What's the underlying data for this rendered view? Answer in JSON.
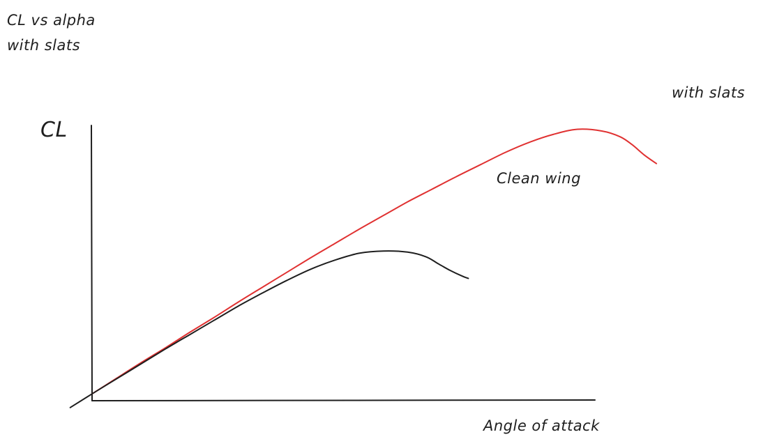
{
  "chart_data": {
    "type": "line",
    "title_lines": [
      "CL vs alpha",
      "with slats"
    ],
    "xlabel": "Angle of attack",
    "ylabel": "CL",
    "grid": false,
    "colors": {
      "axis": "#1e1e1e",
      "clean": "#1e1e1e",
      "slats": "#e03131"
    },
    "series": [
      {
        "name": "Clean wing",
        "x": [
          -0.18,
          0.0,
          0.2,
          0.4,
          0.6,
          0.8,
          1.0,
          1.2,
          1.4,
          1.6,
          1.8,
          2.0,
          2.2,
          2.4,
          2.6,
          2.75,
          2.85,
          2.95,
          3.05,
          3.1
        ],
        "y": [
          -0.12,
          0.12,
          0.38,
          0.64,
          0.9,
          1.15,
          1.4,
          1.65,
          1.88,
          2.1,
          2.3,
          2.46,
          2.58,
          2.62,
          2.6,
          2.52,
          2.4,
          2.28,
          2.18,
          2.14
        ]
      },
      {
        "name": "with slats",
        "x": [
          0.0,
          0.2,
          0.4,
          0.6,
          0.8,
          1.0,
          1.2,
          1.4,
          1.6,
          1.8,
          2.0,
          2.2,
          2.4,
          2.6,
          2.8,
          3.0,
          3.2,
          3.4,
          3.6,
          3.8,
          4.0,
          4.2,
          4.35,
          4.45,
          4.55,
          4.65
        ],
        "y": [
          0.12,
          0.39,
          0.66,
          0.92,
          1.19,
          1.45,
          1.72,
          1.98,
          2.24,
          2.5,
          2.75,
          3.0,
          3.24,
          3.48,
          3.7,
          3.92,
          4.13,
          4.34,
          4.52,
          4.66,
          4.75,
          4.72,
          4.62,
          4.48,
          4.3,
          4.15
        ]
      }
    ],
    "series_label_1": "Clean wing",
    "series_label_2": "with slats"
  }
}
